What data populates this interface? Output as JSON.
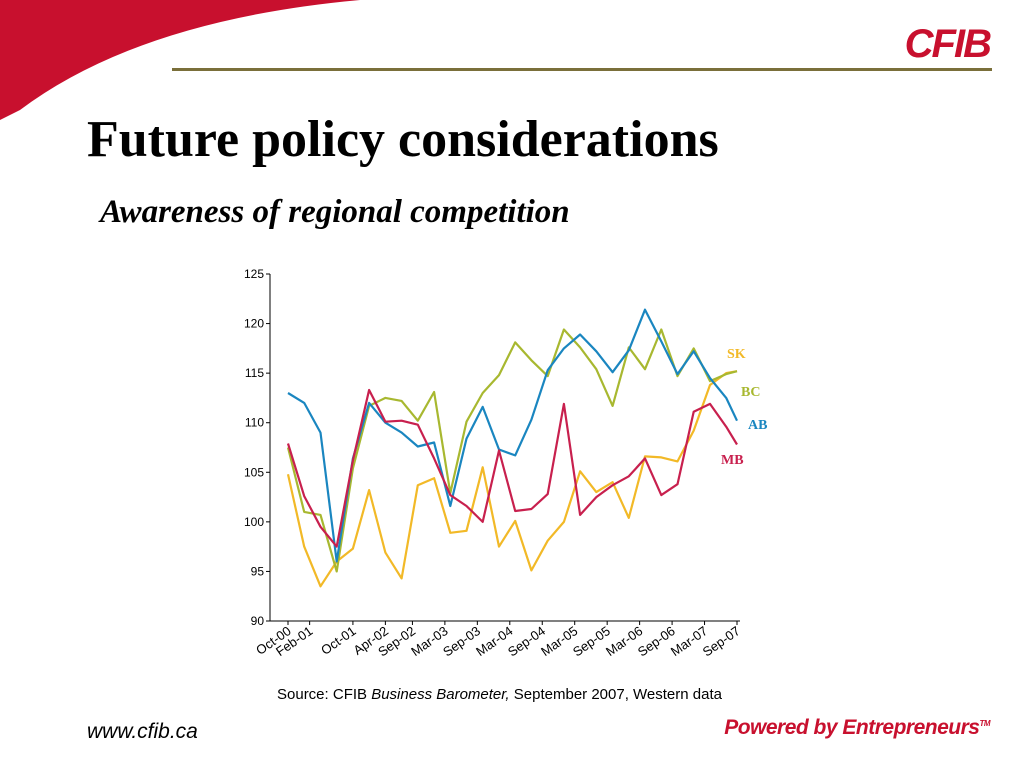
{
  "slide": {
    "logo_text": "CFIB",
    "title": "Future policy considerations",
    "subtitle": "Awareness of regional competition",
    "source": {
      "prefix": "Source: CFIB ",
      "publication": "Business Barometer,",
      "suffix": " September 2007, Western data"
    },
    "website": "www.cfib.ca",
    "tagline": "Powered by Entrepreneurs",
    "tagline_mark": "TM"
  },
  "colors": {
    "brand_red": "#c8102e",
    "rule": "#7a6f3a",
    "SK": "#f2b927",
    "BC": "#a8b830",
    "AB": "#1a86c0",
    "MB": "#c8204e"
  },
  "chart_data": {
    "type": "line",
    "title": "",
    "xlabel": "",
    "ylabel": "",
    "ylim": [
      90,
      125
    ],
    "yticks": [
      90,
      95,
      100,
      105,
      110,
      115,
      120,
      125
    ],
    "grid": false,
    "x": [
      "Oct-00",
      "Jan-01",
      "Apr-01",
      "Jul-01",
      "Oct-01",
      "Jan-02",
      "Apr-02",
      "Jul-02",
      "Oct-02",
      "Jan-03",
      "Apr-03",
      "Jul-03",
      "Oct-03",
      "Jan-04",
      "Apr-04",
      "Jul-04",
      "Oct-04",
      "Jan-05",
      "Apr-05",
      "Jul-05",
      "Oct-05",
      "Jan-06",
      "Apr-06",
      "Jul-06",
      "Oct-06",
      "Jan-07",
      "Apr-07",
      "Jul-07",
      "Sep-07"
    ],
    "tick_labels": [
      "Oct-00",
      "Feb-01",
      "Oct-01",
      "Apr-02",
      "Sep-02",
      "Mar-03",
      "Sep-03",
      "Mar-04",
      "Sep-04",
      "Mar-05",
      "Sep-05",
      "Mar-06",
      "Sep-06",
      "Mar-07",
      "Sep-07"
    ],
    "series": [
      {
        "name": "SK",
        "values": [
          104.8,
          97.5,
          93.5,
          96.0,
          97.3,
          103.2,
          96.9,
          94.3,
          103.7,
          104.4,
          98.9,
          99.1,
          105.5,
          97.5,
          100.1,
          95.1,
          98.1,
          100.0,
          105.1,
          103.0,
          104.0,
          100.4,
          106.6,
          106.5,
          106.1,
          109.2,
          113.8,
          115.0,
          115.2
        ]
      },
      {
        "name": "BC",
        "values": [
          107.5,
          101.0,
          100.7,
          95.0,
          105.4,
          111.7,
          112.5,
          112.2,
          110.2,
          113.1,
          102.9,
          110.1,
          113.0,
          114.8,
          118.1,
          116.3,
          114.7,
          119.4,
          117.6,
          115.4,
          111.7,
          117.6,
          115.4,
          119.4,
          114.7,
          117.5,
          114.2,
          114.9,
          115.2
        ]
      },
      {
        "name": "AB",
        "values": [
          113.0,
          112.0,
          109.0,
          96.0,
          106.4,
          112.0,
          110.0,
          109.0,
          107.6,
          108.0,
          101.6,
          108.4,
          111.6,
          107.3,
          106.7,
          110.3,
          115.3,
          117.5,
          118.9,
          117.2,
          115.1,
          117.3,
          121.4,
          118.2,
          114.9,
          117.2,
          114.5,
          112.5,
          110.2
        ]
      },
      {
        "name": "MB",
        "values": [
          107.9,
          102.6,
          99.5,
          97.5,
          106.2,
          113.3,
          110.1,
          110.2,
          109.8,
          106.4,
          102.7,
          101.6,
          100.0,
          107.2,
          101.1,
          101.3,
          102.8,
          111.9,
          100.7,
          102.5,
          103.7,
          104.6,
          106.4,
          102.7,
          103.8,
          111.1,
          111.9,
          109.6,
          107.8
        ]
      }
    ],
    "series_labels": [
      "SK",
      "BC",
      "AB",
      "MB"
    ]
  }
}
